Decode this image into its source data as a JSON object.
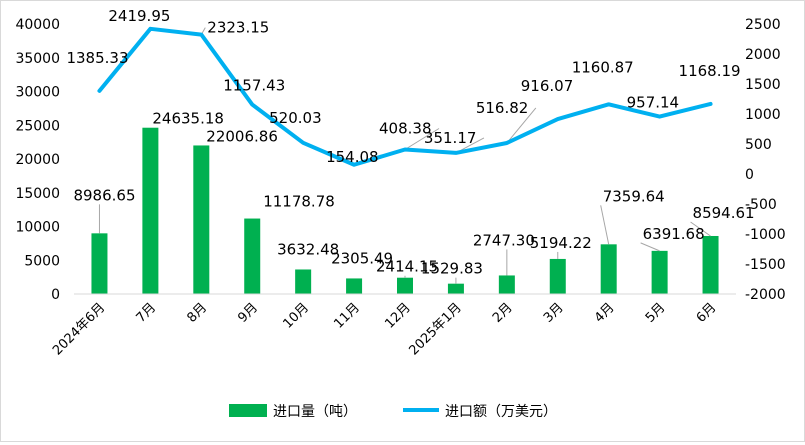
{
  "chart_data": {
    "type": "bar+line",
    "categories": [
      "2024年6月",
      "7月",
      "8月",
      "9月",
      "10月",
      "11月",
      "12月",
      "2025年1月",
      "2月",
      "3月",
      "4月",
      "5月",
      "6月"
    ],
    "series": [
      {
        "name": "进口量（吨）",
        "type": "bar",
        "axis": "left",
        "color": "#00b050",
        "values": [
          8986.65,
          24635.18,
          22006.86,
          11178.78,
          3632.48,
          2305.49,
          2414.15,
          1529.83,
          2747.3,
          5194.22,
          7359.64,
          6391.68,
          8594.61
        ],
        "labels": [
          "8986.65",
          "24635.18",
          "22006.86",
          "11178.78",
          "3632.48",
          "2305.49",
          "2414.15",
          "1529.83",
          "2747.30",
          "5194.22",
          "7359.64",
          "6391.68",
          "8594.61"
        ]
      },
      {
        "name": "进口额（万美元）",
        "type": "line",
        "axis": "right",
        "color": "#00b0f0",
        "values": [
          1385.33,
          2419.95,
          2323.15,
          1157.43,
          520.03,
          154.08,
          408.38,
          351.17,
          516.82,
          916.07,
          1160.87,
          957.14,
          1168.19
        ],
        "labels": [
          "1385.33",
          "2419.95",
          "2323.15",
          "1157.43",
          "520.03",
          "154.08",
          "408.38",
          "351.17",
          "516.82",
          "916.07",
          "1160.87",
          "957.14",
          "1168.19"
        ]
      }
    ],
    "y_left": {
      "min": 0,
      "max": 40000,
      "step": 5000
    },
    "y_right": {
      "min": -2000,
      "max": 2500,
      "step": 500
    },
    "grid": false,
    "legend_position": "bottom"
  }
}
